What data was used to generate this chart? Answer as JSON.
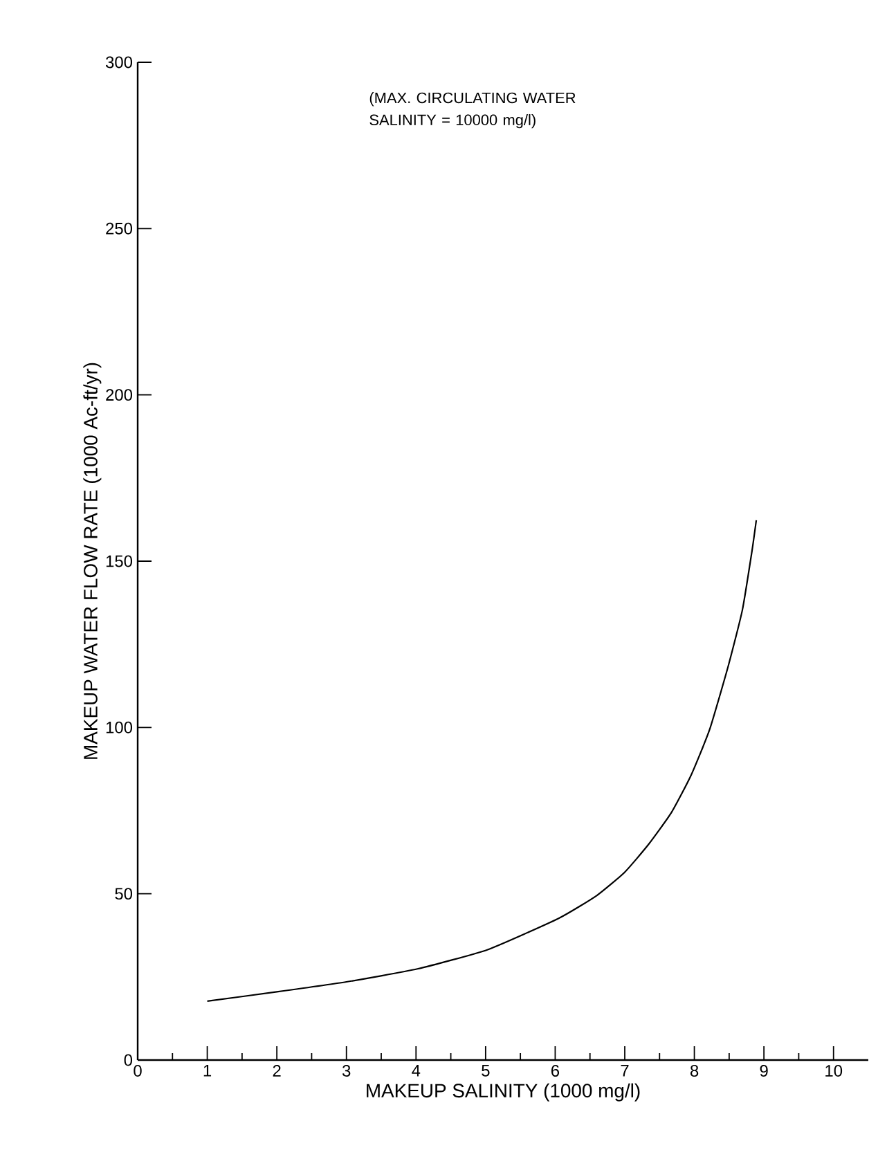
{
  "chart_data": {
    "type": "line",
    "xlabel": "MAKEUP SALINITY (1000 mg/l)",
    "ylabel": "MAKEUP WATER FLOW RATE (1000 Ac-ft/yr)",
    "annotations": [
      "(MAX. CIRCULATING WATER SALINITY = 10000 mg/l)"
    ],
    "xlim": [
      0,
      10.5
    ],
    "ylim": [
      0,
      300
    ],
    "xticks": [
      0,
      1,
      2,
      3,
      4,
      5,
      6,
      7,
      8,
      9,
      10
    ],
    "yticks": [
      0,
      50,
      100,
      150,
      200,
      250,
      300
    ],
    "grid": false,
    "marker": "none",
    "line_style": "solid",
    "series": [
      {
        "color": "#000000",
        "x": [
          1.0,
          2.0,
          3.0,
          4.02,
          5.03,
          6.05,
          6.6,
          7.0,
          7.34,
          7.67,
          7.95,
          8.22,
          8.49,
          8.69,
          8.83,
          8.89
        ],
        "values": [
          17.7,
          20.5,
          23.5,
          27.4,
          33.2,
          42.6,
          49.5,
          56.5,
          64.8,
          74.4,
          85.5,
          99.4,
          118.7,
          135.3,
          153.3,
          162.3
        ]
      }
    ]
  }
}
